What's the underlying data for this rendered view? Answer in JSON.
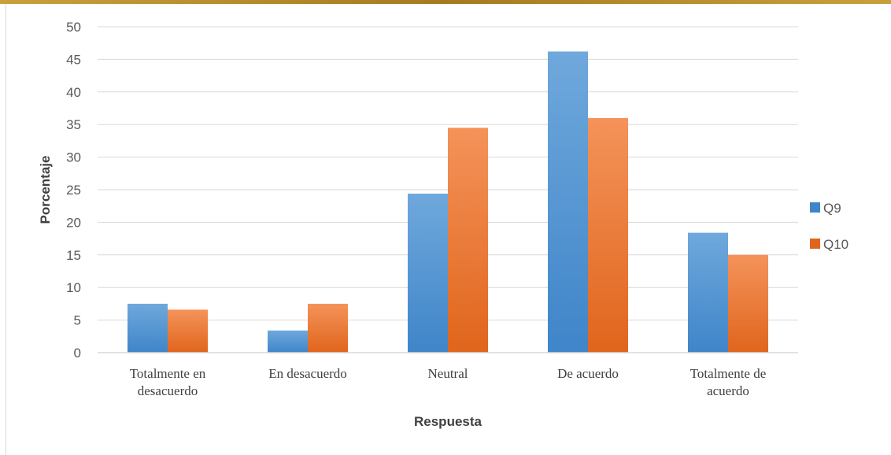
{
  "chart_data": {
    "type": "bar",
    "categories": [
      [
        "Totalmente en",
        "desacuerdo"
      ],
      [
        "En desacuerdo"
      ],
      [
        "Neutral"
      ],
      [
        "De acuerdo"
      ],
      [
        "Totalmente de",
        "acuerdo"
      ]
    ],
    "series": [
      {
        "name": "Q9",
        "values": [
          7.5,
          3.4,
          24.4,
          46.2,
          18.4
        ],
        "color_top": "#6fa8dc",
        "color_bottom": "#3f85c9"
      },
      {
        "name": "Q10",
        "values": [
          6.6,
          7.5,
          34.5,
          36.0,
          15.0
        ],
        "color_top": "#f4935a",
        "color_bottom": "#e0651c"
      }
    ],
    "title": "",
    "xlabel": "Respuesta",
    "ylabel": "Porcentaje",
    "ylim": [
      0,
      50
    ],
    "yticks": [
      0,
      5,
      10,
      15,
      20,
      25,
      30,
      35,
      40,
      45,
      50
    ],
    "grid": true,
    "legend": "right"
  },
  "colors": {
    "gridline": "#d9d9d9",
    "axis_line": "#d9d9d9",
    "top_band": "#b08a2a"
  }
}
